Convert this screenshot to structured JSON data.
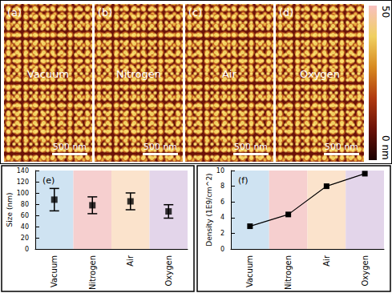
{
  "panels": [
    {
      "label": "(a)",
      "title": "Vacuum",
      "scale_bar": "500 nm"
    },
    {
      "label": "(b)",
      "title": "Nitrogen",
      "scale_bar": "500 nm"
    },
    {
      "label": "(c)",
      "title": "Air",
      "scale_bar": "500 nm"
    },
    {
      "label": "(d)",
      "title": "Oxygen",
      "scale_bar": "500 nm"
    }
  ],
  "colorbar": {
    "range": [
      0,
      50
    ],
    "ticks": [
      {
        "value": 0,
        "label": "0 nm"
      },
      50
    ]
  },
  "chart_data": [
    {
      "type": "scatter",
      "title": "(e)",
      "y_label": "Size (nm)",
      "categories": [
        "Vacuum",
        "Nitrogen",
        "Air",
        "Oxygen"
      ],
      "values": [
        88,
        78,
        85,
        67
      ],
      "errors": [
        20,
        15,
        15,
        12
      ],
      "color": "#000000",
      "marker": "square",
      "ylim": [
        0,
        140
      ],
      "yticks": [
        0,
        20,
        40,
        60,
        80,
        100,
        120,
        140
      ]
    },
    {
      "type": "line",
      "title": "(f)",
      "y_label": "Density (1E9/cm^2)",
      "categories": [
        "Vacuum",
        "Nitrogen",
        "Air",
        "Oxygen"
      ],
      "values": [
        2.9,
        4.4,
        8,
        9.6
      ],
      "color": "#000000",
      "marker": "square",
      "ylim": [
        0,
        10
      ],
      "yticks": [
        0,
        2,
        4,
        6,
        8,
        10
      ]
    }
  ]
}
